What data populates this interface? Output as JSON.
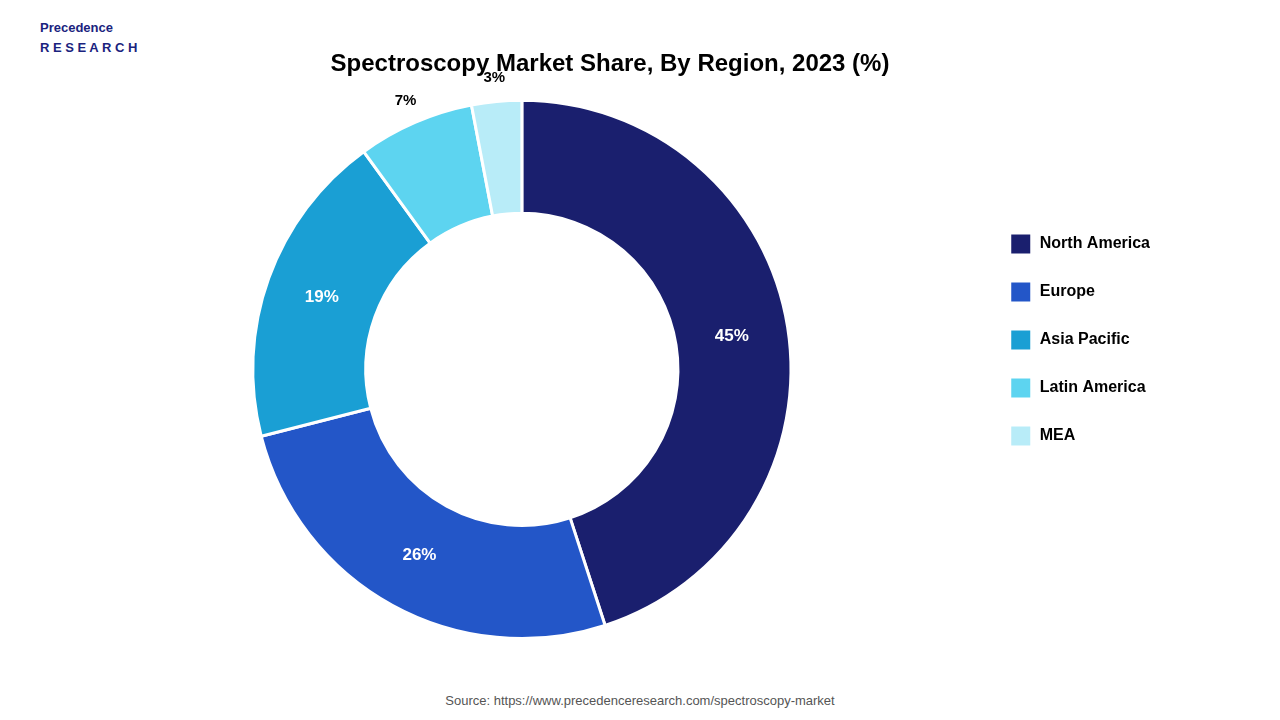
{
  "chart_data": {
    "type": "doughnut",
    "title": "Spectroscopy Market Share, By Region, 2023 (%)",
    "categories": [
      "North America",
      "Europe",
      "Asia Pacific",
      "Latin America",
      "MEA"
    ],
    "values": [
      45,
      26,
      19,
      7,
      3
    ],
    "value_labels": [
      "45%",
      "26%",
      "19%",
      "7%",
      "3%"
    ],
    "colors": [
      "#1a1f6e",
      "#2356c8",
      "#1a9fd4",
      "#5dd4f0",
      "#b8ecf8"
    ],
    "data_labels": true,
    "legend": "right",
    "annotations": [
      "Precedence\nR E S E A R C H",
      "Source: https://www.precedenceresearch.com/spectroscopy-market"
    ]
  }
}
